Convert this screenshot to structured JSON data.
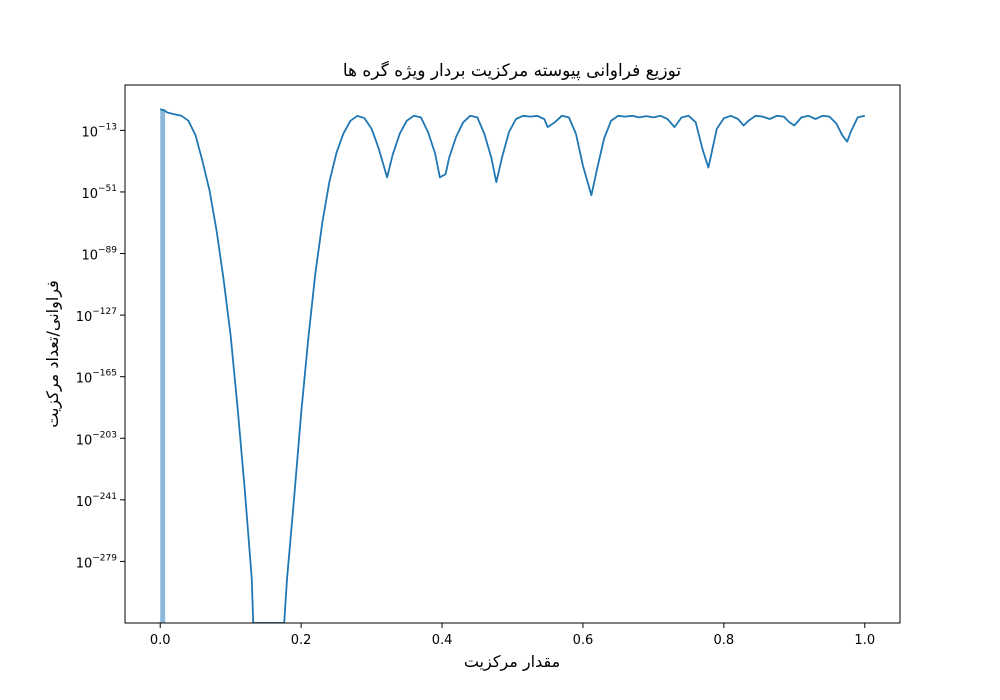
{
  "chart_data": {
    "type": "line",
    "title": "توزیع فراوانی پیوسته مرکزیت بردار ویژه گره ها",
    "xlabel": "مقدار مرکزیت",
    "ylabel": "فراوانی/تعداد مرکزیت",
    "xlim": [
      -0.05,
      1.05
    ],
    "ylim_log10": [
      -317,
      15
    ],
    "y_scale": "log",
    "grid": false,
    "x_ticks": [
      {
        "value": 0.0,
        "label": "0.0"
      },
      {
        "value": 0.2,
        "label": "0.2"
      },
      {
        "value": 0.4,
        "label": "0.4"
      },
      {
        "value": 0.6,
        "label": "0.6"
      },
      {
        "value": 0.8,
        "label": "0.8"
      },
      {
        "value": 1.0,
        "label": "1.0"
      }
    ],
    "y_ticks": [
      {
        "exp": -13,
        "base": "10",
        "sup": "−13"
      },
      {
        "exp": -51,
        "base": "10",
        "sup": "−51"
      },
      {
        "exp": -89,
        "base": "10",
        "sup": "−89"
      },
      {
        "exp": -127,
        "base": "10",
        "sup": "−127"
      },
      {
        "exp": -165,
        "base": "10",
        "sup": "−165"
      },
      {
        "exp": -203,
        "base": "10",
        "sup": "−203"
      },
      {
        "exp": -241,
        "base": "10",
        "sup": "−241"
      },
      {
        "exp": -279,
        "base": "10",
        "sup": "−279"
      }
    ],
    "histogram_bar": {
      "x0": 0.0,
      "x1": 0.007,
      "log10_top": 0,
      "color": "#8db9d9"
    },
    "series": [
      {
        "color": "#1f77b4",
        "log10_points": [
          [
            0.0,
            0
          ],
          [
            0.005,
            -0.5
          ],
          [
            0.01,
            -2
          ],
          [
            0.02,
            -3
          ],
          [
            0.03,
            -4
          ],
          [
            0.04,
            -7
          ],
          [
            0.05,
            -16
          ],
          [
            0.06,
            -32
          ],
          [
            0.07,
            -50
          ],
          [
            0.08,
            -75
          ],
          [
            0.09,
            -105
          ],
          [
            0.1,
            -140
          ],
          [
            0.11,
            -185
          ],
          [
            0.12,
            -235
          ],
          [
            0.13,
            -290
          ],
          [
            0.132,
            -317
          ],
          [
            0.176,
            -317
          ],
          [
            0.18,
            -290
          ],
          [
            0.19,
            -240
          ],
          [
            0.2,
            -188
          ],
          [
            0.21,
            -142
          ],
          [
            0.22,
            -102
          ],
          [
            0.23,
            -70
          ],
          [
            0.24,
            -45
          ],
          [
            0.25,
            -27
          ],
          [
            0.26,
            -15
          ],
          [
            0.27,
            -7
          ],
          [
            0.28,
            -4
          ],
          [
            0.29,
            -5.5
          ],
          [
            0.3,
            -12
          ],
          [
            0.31,
            -24
          ],
          [
            0.322,
            -42
          ],
          [
            0.33,
            -28
          ],
          [
            0.34,
            -15
          ],
          [
            0.35,
            -7
          ],
          [
            0.36,
            -4
          ],
          [
            0.37,
            -5
          ],
          [
            0.38,
            -14
          ],
          [
            0.39,
            -27
          ],
          [
            0.397,
            -42
          ],
          [
            0.405,
            -40
          ],
          [
            0.41,
            -30
          ],
          [
            0.42,
            -17
          ],
          [
            0.43,
            -8
          ],
          [
            0.44,
            -4
          ],
          [
            0.45,
            -5
          ],
          [
            0.46,
            -15
          ],
          [
            0.47,
            -30
          ],
          [
            0.477,
            -45
          ],
          [
            0.485,
            -30
          ],
          [
            0.495,
            -14
          ],
          [
            0.505,
            -6
          ],
          [
            0.515,
            -4
          ],
          [
            0.525,
            -4.5
          ],
          [
            0.535,
            -4
          ],
          [
            0.545,
            -6
          ],
          [
            0.55,
            -11
          ],
          [
            0.56,
            -8
          ],
          [
            0.57,
            -4
          ],
          [
            0.58,
            -5
          ],
          [
            0.59,
            -15
          ],
          [
            0.6,
            -35
          ],
          [
            0.612,
            -53
          ],
          [
            0.62,
            -37
          ],
          [
            0.63,
            -18
          ],
          [
            0.64,
            -7
          ],
          [
            0.65,
            -4
          ],
          [
            0.66,
            -4.5
          ],
          [
            0.67,
            -4
          ],
          [
            0.68,
            -5
          ],
          [
            0.69,
            -4.2
          ],
          [
            0.7,
            -5
          ],
          [
            0.71,
            -4
          ],
          [
            0.72,
            -6
          ],
          [
            0.73,
            -11
          ],
          [
            0.74,
            -5
          ],
          [
            0.75,
            -4
          ],
          [
            0.76,
            -8
          ],
          [
            0.77,
            -25
          ],
          [
            0.778,
            -36
          ],
          [
            0.785,
            -22
          ],
          [
            0.79,
            -12
          ],
          [
            0.8,
            -5.5
          ],
          [
            0.81,
            -4
          ],
          [
            0.82,
            -6
          ],
          [
            0.828,
            -10
          ],
          [
            0.835,
            -7
          ],
          [
            0.845,
            -4
          ],
          [
            0.855,
            -4.5
          ],
          [
            0.865,
            -6
          ],
          [
            0.875,
            -4
          ],
          [
            0.885,
            -4.5
          ],
          [
            0.893,
            -8
          ],
          [
            0.9,
            -10
          ],
          [
            0.91,
            -5
          ],
          [
            0.92,
            -4
          ],
          [
            0.93,
            -6
          ],
          [
            0.94,
            -4
          ],
          [
            0.95,
            -4.5
          ],
          [
            0.96,
            -9
          ],
          [
            0.968,
            -16
          ],
          [
            0.975,
            -20
          ],
          [
            0.98,
            -14
          ],
          [
            0.99,
            -5
          ],
          [
            1.0,
            -4
          ]
        ]
      }
    ]
  }
}
